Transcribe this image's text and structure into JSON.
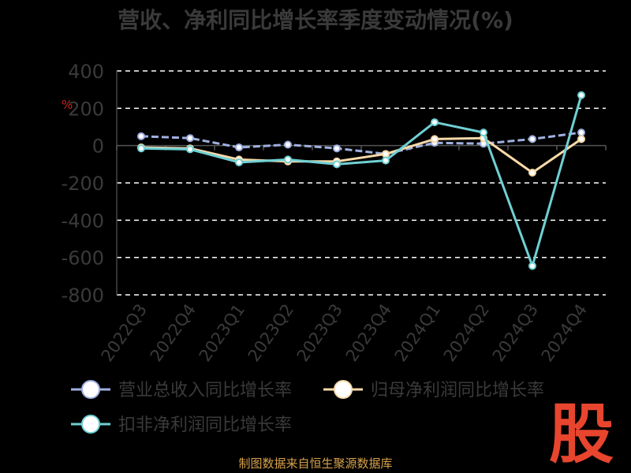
{
  "chart_data": {
    "type": "line",
    "title": "营收、净利同比增长率季度变动情况(%)",
    "y_unit_label": "%",
    "ylim": [
      -800,
      400
    ],
    "yticks": [
      400,
      200,
      0,
      -200,
      -400,
      -600,
      -800
    ],
    "categories": [
      "2022Q3",
      "2022Q4",
      "2023Q1",
      "2023Q2",
      "2023Q3",
      "2023Q4",
      "2024Q1",
      "2024Q2",
      "2024Q3",
      "2024Q4"
    ],
    "grid": true,
    "legend_position": "bottom",
    "series": [
      {
        "name": "营业总收入同比增长率",
        "color": "#9fb0e0",
        "values": [
          50,
          40,
          -10,
          5,
          -15,
          -45,
          15,
          10,
          35,
          70
        ]
      },
      {
        "name": "归母净利润同比增长率",
        "color": "#f7d9a8",
        "values": [
          -10,
          -15,
          -75,
          -85,
          -85,
          -45,
          35,
          40,
          -145,
          35
        ]
      },
      {
        "name": "扣非净利润同比增长率",
        "color": "#6fd0d4",
        "values": [
          -15,
          -20,
          -90,
          -75,
          -100,
          -80,
          125,
          70,
          -645,
          270
        ]
      }
    ]
  },
  "footer": {
    "source": "制图数据来自恒生聚源数据库",
    "watermark": "股"
  }
}
